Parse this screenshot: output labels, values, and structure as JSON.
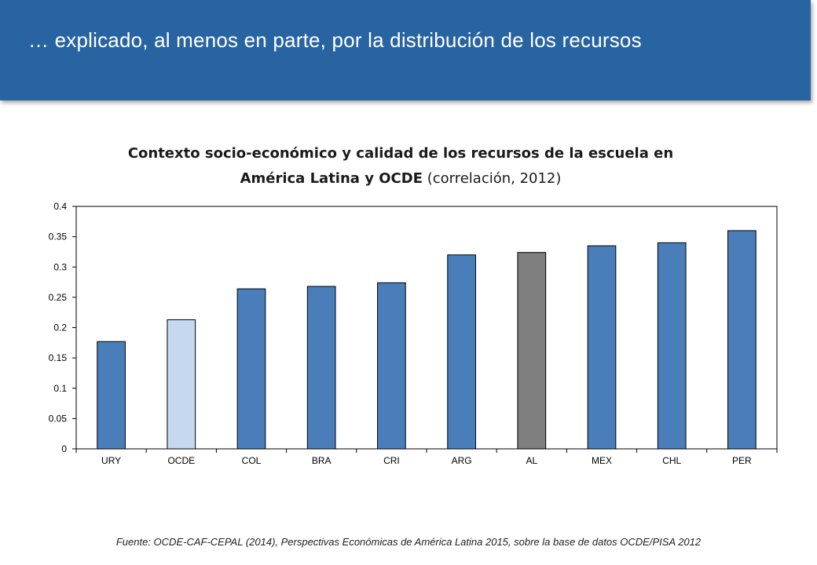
{
  "header": {
    "title": "… explicado, al menos en parte, por la distribución de los recursos"
  },
  "chart_title": {
    "line1": "Contexto socio-económico y calidad de los recursos de la escuela en",
    "line2_bold": "América Latina y OCDE",
    "line2_normal": " (correlación,  2012)"
  },
  "chart_data": {
    "type": "bar",
    "title": "Contexto socio-económico y calidad de los recursos de la escuela en América Latina y OCDE (correlación,  2012)",
    "xlabel": "",
    "ylabel": "",
    "categories": [
      "URY",
      "OCDE",
      "COL",
      "BRA",
      "CRI",
      "ARG",
      "AL",
      "MEX",
      "CHL",
      "PER"
    ],
    "values": [
      0.177,
      0.213,
      0.264,
      0.268,
      0.274,
      0.32,
      0.324,
      0.335,
      0.34,
      0.36
    ],
    "ylim": [
      0,
      0.4
    ],
    "yticks": [
      0,
      0.05,
      0.1,
      0.15,
      0.2,
      0.25,
      0.3,
      0.35,
      0.4
    ],
    "ytick_labels": [
      "0",
      "0.05",
      "0.1",
      "0.15",
      "0.2",
      "0.25",
      "0.3",
      "0.35",
      "0.4"
    ],
    "grid": false,
    "colors": {
      "default": "#4a7ebb",
      "OCDE": "#c5d8f0",
      "AL": "#7f7f7f"
    }
  },
  "source": "Fuente: OCDE-CAF-CEPAL (2014), Perspectivas Económicas de América Latina 2015,  sobre la base de datos OCDE/PISA 2012"
}
